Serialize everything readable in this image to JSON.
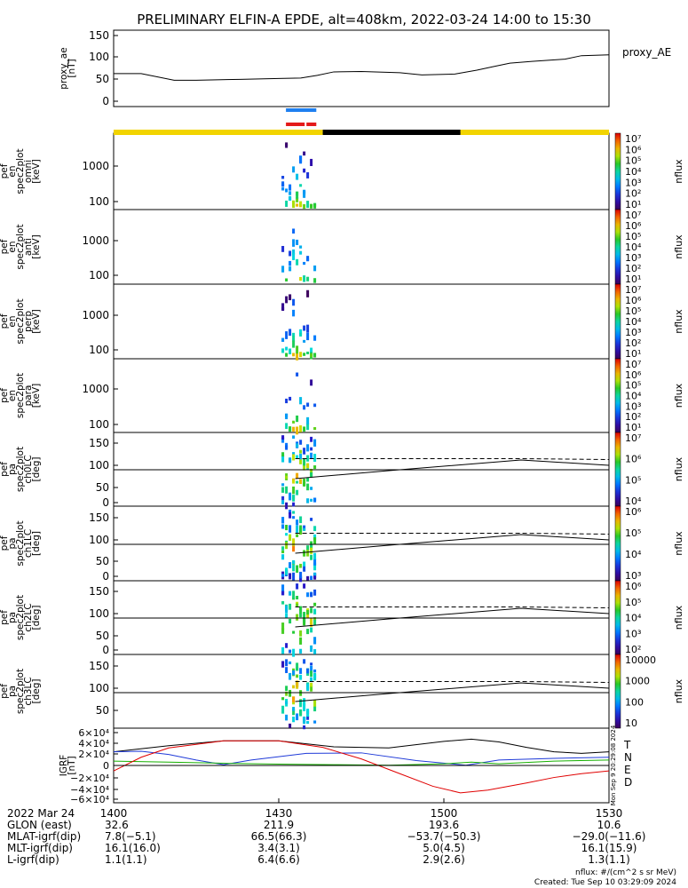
{
  "title": "PRELIMINARY ELFIN-A EPDE, alt=408km, 2022-03-24 14:00 to 15:30",
  "colors": {
    "yellow_bar": "#f2d400",
    "black_bar": "#000000",
    "blue_marker": "#1e7ff0",
    "red_marker": "#e41a1a",
    "geo_T": "#000000",
    "geo_N": "#1f3ad8",
    "geo_E": "#16b000",
    "geo_D": "#e00000"
  },
  "panels": [
    {
      "ylabel": [
        "proxy_ae",
        "[nT]"
      ],
      "ticks": [
        "150",
        "100",
        "50",
        "0"
      ],
      "right_label": "proxy_AE"
    },
    {
      "ylabel": [
        "ela",
        "pef",
        "en",
        "spec2plot",
        "omni",
        "[keV]"
      ],
      "ticks": [
        "1000",
        "100"
      ],
      "cbar_ticks": [
        "10⁷",
        "10⁶",
        "10⁵",
        "10⁴",
        "10³",
        "10²",
        "10¹"
      ],
      "cbar_label": "nflux"
    },
    {
      "ylabel": [
        "ela",
        "pef",
        "en",
        "spec2plot",
        "anti",
        "[keV]"
      ],
      "ticks": [
        "1000",
        "100"
      ],
      "cbar_ticks": [
        "10⁷",
        "10⁶",
        "10⁵",
        "10⁴",
        "10³",
        "10²",
        "10¹"
      ],
      "cbar_label": "nflux"
    },
    {
      "ylabel": [
        "ela",
        "pef",
        "en",
        "spec2plot",
        "perp",
        "[keV]"
      ],
      "ticks": [
        "1000",
        "100"
      ],
      "cbar_ticks": [
        "10⁷",
        "10⁶",
        "10⁵",
        "10⁴",
        "10³",
        "10²",
        "10¹"
      ],
      "cbar_label": "nflux"
    },
    {
      "ylabel": [
        "ela",
        "pef",
        "en",
        "spec2plot",
        "para",
        "[keV]"
      ],
      "ticks": [
        "1000",
        "100"
      ],
      "cbar_ticks": [
        "10⁷",
        "10⁶",
        "10⁵",
        "10⁴",
        "10³",
        "10²",
        "10¹"
      ],
      "cbar_label": "nflux"
    },
    {
      "ylabel": [
        "ela",
        "pef",
        "pa",
        "spec2plot",
        "ch0LC",
        "[deg]"
      ],
      "ticks": [
        "150",
        "100",
        "50",
        "0"
      ],
      "cbar_ticks": [
        "10⁷",
        "10⁶",
        "10⁵",
        "10⁴"
      ],
      "cbar_label": "nflux"
    },
    {
      "ylabel": [
        "ela",
        "pef",
        "pa",
        "spec2plot",
        "ch1LC",
        "[deg]"
      ],
      "ticks": [
        "150",
        "100",
        "50",
        "0"
      ],
      "cbar_ticks": [
        "10⁶",
        "10⁵",
        "10⁴",
        "10³"
      ],
      "cbar_label": "nflux"
    },
    {
      "ylabel": [
        "ela",
        "pef",
        "pa",
        "spec2plot",
        "ch2LC",
        "[deg]"
      ],
      "ticks": [
        "150",
        "100",
        "50",
        "0"
      ],
      "cbar_ticks": [
        "10⁶",
        "10⁵",
        "10⁴",
        "10³",
        "10²"
      ],
      "cbar_label": "nflux"
    },
    {
      "ylabel": [
        "ela",
        "pef",
        "pa",
        "spec2plot",
        "ch3LC",
        "[deg]"
      ],
      "ticks": [
        "150",
        "100",
        "50"
      ],
      "cbar_ticks": [
        "10000",
        "1000",
        "100",
        "10"
      ],
      "cbar_label": "nflux"
    },
    {
      "ylabel": [
        "IGRF",
        "[nT]"
      ],
      "ticks": [
        "6×10⁴",
        "4×10⁴",
        "2×10⁴",
        "0",
        "−2×10⁴",
        "−4×10⁴",
        "−6×10⁴"
      ],
      "legend": [
        "T",
        "N",
        "E",
        "D"
      ],
      "side_text": "Mon Sep 9 20:29:08 2024"
    }
  ],
  "footer": {
    "date_label": "2022 Mar 24",
    "row_labels": [
      "GLON (east)",
      "MLAT-igrf(dip)",
      "MLT-igrf(dip)",
      "L-igrf(dip)"
    ],
    "times": [
      "1400",
      "1430",
      "1500",
      "1530"
    ],
    "values": [
      [
        "32.6",
        "7.8(−5.1)",
        "16.1(16.0)",
        "1.1(1.1)"
      ],
      [
        "211.9",
        "66.5(66.3)",
        "3.4(3.1)",
        "6.4(6.6)"
      ],
      [
        "193.6",
        "−53.7(−50.3)",
        "5.0(4.5)",
        "2.9(2.6)"
      ],
      [
        "10.6",
        "−29.0(−11.6)",
        "16.1(15.9)",
        "1.3(1.1)"
      ]
    ],
    "note1": "nflux: #/(cm^2 s sr MeV)",
    "note2": "Created: Tue Sep 10 03:29:09 2024"
  },
  "chart_data": {
    "type": "line",
    "title": "PRELIMINARY ELFIN-A EPDE, alt=408km, 2022-03-24 14:00 to 15:30",
    "x_unit": "minutes after 14:00 UT",
    "x_ticks": [
      "1400",
      "1430",
      "1500",
      "1530"
    ],
    "xlim": [
      0,
      90
    ],
    "series": [
      {
        "name": "proxy_AE",
        "ylim": [
          0,
          150
        ],
        "x": [
          0,
          5,
          11,
          15,
          23,
          30,
          34,
          37,
          40,
          45,
          52,
          56,
          62,
          66,
          69,
          72,
          76,
          82,
          85,
          90
        ],
        "y": [
          63,
          63,
          48,
          48,
          50,
          52,
          53,
          59,
          67,
          68,
          65,
          60,
          62,
          71,
          79,
          87,
          91,
          96,
          104,
          106
        ]
      },
      {
        "name": "IGRF T",
        "ylim": [
          -60000,
          60000
        ],
        "x": [
          0,
          10,
          20,
          30,
          40,
          50,
          60,
          65,
          70,
          75,
          80,
          85,
          90
        ],
        "y": [
          25000,
          36000,
          45000,
          45000,
          34000,
          32000,
          44000,
          48000,
          43000,
          33000,
          25000,
          22000,
          25000
        ]
      },
      {
        "name": "IGRF N",
        "ylim": [
          -60000,
          60000
        ],
        "x": [
          0,
          5,
          10,
          15,
          20,
          25,
          35,
          45,
          55,
          64,
          70,
          80,
          90
        ],
        "y": [
          25000,
          26000,
          20000,
          10000,
          1500,
          10000,
          22000,
          23000,
          9000,
          500,
          10000,
          13000,
          15000
        ]
      },
      {
        "name": "IGRF E",
        "ylim": [
          -60000,
          60000
        ],
        "x": [
          0,
          10,
          20,
          30,
          40,
          50,
          60,
          65,
          70,
          80,
          90
        ],
        "y": [
          8000,
          6000,
          4000,
          2500,
          1500,
          500,
          3000,
          6000,
          3000,
          8000,
          10000
        ]
      },
      {
        "name": "IGRF D",
        "ylim": [
          -60000,
          60000
        ],
        "x": [
          0,
          5,
          10,
          20,
          30,
          38,
          45,
          52,
          58,
          63,
          68,
          75,
          80,
          85,
          90
        ],
        "y": [
          -10000,
          15000,
          32000,
          45000,
          45000,
          33000,
          12000,
          -15000,
          -38000,
          -50000,
          -45000,
          -32000,
          -22000,
          -15000,
          -10000
        ]
      }
    ],
    "pitch_angle_panels": {
      "ylim": [
        0,
        180
      ],
      "solid_line": {
        "x": [
          33,
          50,
          74,
          90
        ],
        "y": [
          70,
          88,
          112,
          100
        ]
      },
      "dashed_line": {
        "x": [
          33,
          74,
          90
        ],
        "y": [
          115,
          115,
          113
        ]
      },
      "horizontal_ref": 90
    },
    "energy_panels": {
      "ylim_keV": [
        60,
        6000
      ],
      "scale": "log"
    },
    "data_interval": [
      30.5,
      36.5
    ],
    "bars": {
      "yellow": [
        [
          0,
          38
        ],
        [
          63,
          90
        ]
      ],
      "black": [
        [
          38,
          63
        ]
      ]
    }
  }
}
